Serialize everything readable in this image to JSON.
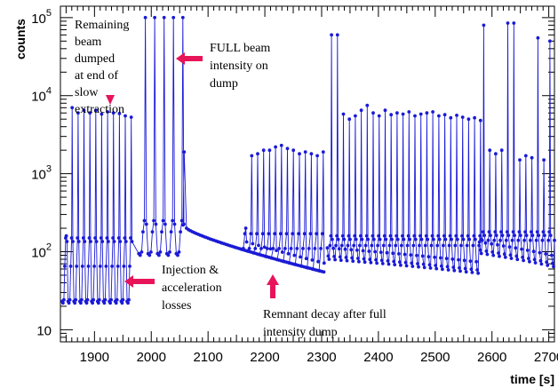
{
  "chart_data": {
    "type": "line",
    "title": "",
    "xlabel": "time [s]",
    "ylabel": "counts",
    "xlim": [
      1840,
      2710
    ],
    "ylim": [
      7,
      140000
    ],
    "y_scale": "log",
    "grid": false,
    "x_ticks": [
      1900,
      2000,
      2100,
      2200,
      2300,
      2400,
      2500,
      2600,
      2700
    ],
    "x_tick_labels": [
      "1900",
      "2000",
      "2100",
      "2200",
      "2300",
      "2400",
      "2500",
      "2600",
      "2700"
    ],
    "y_ticks": [
      10,
      100,
      1000,
      10000,
      100000
    ],
    "y_tick_labels": [
      {
        "base": "10",
        "exp": ""
      },
      {
        "base": "10",
        "exp": "2"
      },
      {
        "base": "10",
        "exp": "3"
      },
      {
        "base": "10",
        "exp": "4"
      },
      {
        "base": "10",
        "exp": "5"
      }
    ],
    "series_color": "#1a1ad6",
    "annotation_color": "#e8145a",
    "annotations": [
      {
        "id": "remaining",
        "lines": [
          "Remaining",
          "beam",
          "dumped",
          "at end of",
          "slow",
          "extraction"
        ],
        "arrow": "down"
      },
      {
        "id": "full",
        "lines": [
          "FULL beam",
          "intensity on",
          "dump"
        ],
        "arrow": "left"
      },
      {
        "id": "injection",
        "lines": [
          "Injection &",
          "acceleration",
          "losses"
        ],
        "arrow": "left"
      },
      {
        "id": "remnant",
        "lines": [
          "Remnant decay after full",
          "intensity dump"
        ],
        "arrow": "up"
      }
    ],
    "segments": [
      {
        "name": "cycles-1",
        "t_start": 1843,
        "t_end": 1968,
        "period": 10.4,
        "peaks": [
          160,
          7000,
          6000,
          6500,
          6000,
          6500,
          5800,
          6200,
          6000,
          5900,
          5500,
          5300
        ],
        "base": 22,
        "mid": 150,
        "shoulder": 65
      },
      {
        "name": "full-dumps",
        "t_start": 1978,
        "t_end": 2050,
        "period": 16.5,
        "peaks": [
          100000,
          100000,
          100000,
          100000,
          100000
        ],
        "base": 90,
        "mid": 250,
        "shoulder": 180
      },
      {
        "name": "cycles-2",
        "t_start": 2159,
        "t_end": 2303,
        "period": 10.5,
        "peaks": [
          200,
          1700,
          1800,
          2000,
          2000,
          2200,
          2300,
          2100,
          2000,
          1800,
          1900,
          1800,
          1700,
          1900
        ],
        "base": 82,
        "mid": 170,
        "shoulder": 110
      },
      {
        "name": "cycles-3",
        "t_start": 2310,
        "t_end": 2575,
        "period": 10.5,
        "peaks": [
          60000,
          60000,
          5800,
          5000,
          5500,
          6500,
          7500,
          6000,
          5500,
          6500,
          5700,
          6000,
          5800,
          6200,
          5500,
          5800,
          6000,
          6200,
          5500,
          5700,
          5200,
          5600,
          5300,
          5000,
          5200,
          4800
        ],
        "base": 80,
        "mid": 160,
        "shoulder": 120
      },
      {
        "name": "cycles-4",
        "t_start": 2578,
        "t_end": 2708,
        "period": 10.6,
        "peaks": [
          80000,
          2000,
          1800,
          2000,
          85000,
          85000,
          1500,
          1700,
          1600,
          55000,
          1500,
          50000,
          1400
        ],
        "base": 95,
        "mid": 180,
        "shoulder": 140
      }
    ],
    "decay": {
      "t_start": 2062,
      "t_end": 2304,
      "start_value": 200,
      "end_value": 55
    },
    "decay_spike": {
      "t": 2058,
      "value": 1900
    }
  }
}
